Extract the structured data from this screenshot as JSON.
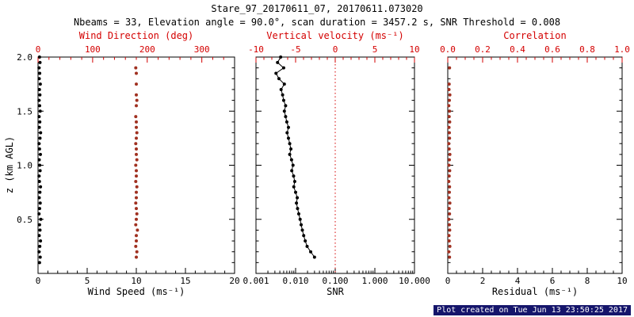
{
  "header": {
    "title": "Stare_97_20170611_07, 20170611.073020",
    "subtitle": "Nbeams = 33, Elevation angle = 90.0°, scan duration = 3457.2 s, SNR Threshold = 0.008"
  },
  "footer": {
    "created": "Plot created on Tue Jun 13 23:50:25 2017"
  },
  "colors": {
    "axis_red": "#d40000",
    "dot_dark_red": "#a03020",
    "line_black": "#000000",
    "footer_bg": "#15156b",
    "footer_fg": "#ffffff"
  },
  "chart_data": [
    {
      "type": "scatter",
      "top_title": "Wind Direction (deg)",
      "xlabel": "Wind Speed (ms⁻¹)",
      "ylabel": "z (km AGL)",
      "x_bottom": {
        "min": 0,
        "max": 20,
        "ticks": [
          0,
          5,
          10,
          15,
          20
        ],
        "labels": [
          "0",
          "5",
          "10",
          "15",
          "20"
        ],
        "minor_step": 1
      },
      "x_top": {
        "min": 0,
        "max": 360,
        "ticks": [
          0,
          100,
          200,
          300
        ],
        "labels": [
          "0",
          "100",
          "200",
          "300"
        ],
        "minor_step": 20
      },
      "y": {
        "min": 0,
        "max": 2,
        "ticks": [
          0.5,
          1,
          1.5,
          2
        ],
        "labels": [
          "0.5",
          "1.0",
          "1.5",
          "2.0"
        ],
        "minor_step": 0.1
      },
      "series": [
        {
          "name": "wind-speed",
          "axis": "bottom",
          "marker": "dot",
          "marker_color": "#000000",
          "connect": false,
          "z": [
            0.1,
            0.15,
            0.2,
            0.25,
            0.3,
            0.35,
            0.4,
            0.45,
            0.5,
            0.55,
            0.6,
            0.65,
            0.7,
            0.75,
            0.8,
            0.85,
            0.9,
            0.95,
            1.0,
            1.05,
            1.1,
            1.15,
            1.2,
            1.25,
            1.3,
            1.35,
            1.4,
            1.45,
            1.5,
            1.55,
            1.6,
            1.65,
            1.7,
            1.75,
            1.8,
            1.85,
            1.9,
            1.95,
            2.0
          ],
          "x": [
            0.15,
            0.22,
            0.1,
            0.18,
            0.25,
            0.12,
            0.2,
            0.15,
            0.28,
            0.1,
            0.16,
            0.22,
            0.12,
            0.19,
            0.25,
            0.14,
            0.1,
            0.21,
            0.17,
            0.12,
            0.24,
            0.15,
            0.1,
            0.2,
            0.26,
            0.13,
            0.18,
            0.11,
            0.22,
            0.16,
            0.1,
            0.19,
            0.14,
            0.23,
            0.12,
            0.17,
            0.1,
            0.2,
            0.15
          ]
        },
        {
          "name": "wind-direction",
          "axis": "top",
          "marker": "dot",
          "marker_color": "#a03020",
          "connect": false,
          "z": [
            0.15,
            0.2,
            0.25,
            0.3,
            0.35,
            0.4,
            0.45,
            0.5,
            0.55,
            0.6,
            0.65,
            0.7,
            0.75,
            0.8,
            0.85,
            0.9,
            0.95,
            1.0,
            1.05,
            1.1,
            1.15,
            1.2,
            1.25,
            1.3,
            1.35,
            1.4,
            1.45,
            1.55,
            1.6,
            1.65,
            1.75,
            1.85,
            1.9
          ],
          "x": [
            180,
            181,
            179,
            180,
            180,
            182,
            179,
            180,
            181,
            180,
            179,
            180,
            180,
            181,
            179,
            180,
            180,
            179,
            181,
            180,
            180,
            179,
            180,
            181,
            180,
            180,
            179,
            180,
            181,
            180,
            180,
            180,
            179
          ]
        }
      ]
    },
    {
      "type": "line",
      "top_title": "Vertical velocity (ms⁻¹)",
      "xlabel": "SNR",
      "x_bottom": {
        "scale": "log",
        "min": 0.001,
        "max": 10,
        "ticks": [
          0.001,
          0.01,
          0.1,
          1,
          10
        ],
        "labels": [
          "0.001",
          "0.010",
          "0.100",
          "1.000",
          "10.000"
        ]
      },
      "x_top": {
        "min": -10,
        "max": 10,
        "ticks": [
          -10,
          -5,
          0,
          5,
          10
        ],
        "labels": [
          "-10",
          "-5",
          "0",
          "5",
          "10"
        ],
        "minor_step": 1
      },
      "y": {
        "min": 0,
        "max": 2,
        "ticks": [
          0.5,
          1,
          1.5,
          2
        ],
        "labels": [],
        "minor_step": 0.1
      },
      "refline": {
        "axis": "top",
        "x": 0,
        "style": "dotted",
        "color": "#d40000"
      },
      "series": [
        {
          "name": "snr-profile",
          "axis": "bottom",
          "marker": "dot",
          "marker_color": "#000000",
          "line_color": "#000000",
          "connect": true,
          "z": [
            2.0,
            1.95,
            1.9,
            1.85,
            1.8,
            1.75,
            1.7,
            1.65,
            1.6,
            1.55,
            1.5,
            1.45,
            1.4,
            1.35,
            1.3,
            1.25,
            1.2,
            1.15,
            1.1,
            1.05,
            1.0,
            0.95,
            0.9,
            0.85,
            0.8,
            0.75,
            0.7,
            0.65,
            0.6,
            0.55,
            0.5,
            0.45,
            0.4,
            0.35,
            0.3,
            0.25,
            0.2,
            0.15
          ],
          "x": [
            0.0042,
            0.0035,
            0.005,
            0.0032,
            0.0038,
            0.0052,
            0.0043,
            0.0047,
            0.005,
            0.0056,
            0.0052,
            0.0056,
            0.006,
            0.0066,
            0.0061,
            0.0066,
            0.0071,
            0.0076,
            0.0071,
            0.0079,
            0.0086,
            0.008,
            0.0089,
            0.0095,
            0.009,
            0.01,
            0.011,
            0.0105,
            0.0112,
            0.012,
            0.013,
            0.0138,
            0.0148,
            0.016,
            0.0175,
            0.0195,
            0.024,
            0.03
          ]
        }
      ]
    },
    {
      "type": "scatter",
      "top_title": "Correlation",
      "xlabel": "Residual (ms⁻¹)",
      "x_bottom": {
        "min": 0,
        "max": 10,
        "ticks": [
          0,
          2,
          4,
          6,
          8,
          10
        ],
        "labels": [
          "0",
          "2",
          "4",
          "6",
          "8",
          "10"
        ],
        "minor_step": 0.5
      },
      "x_top": {
        "min": 0,
        "max": 1,
        "ticks": [
          0,
          0.2,
          0.4,
          0.6,
          0.8,
          1
        ],
        "labels": [
          "0.0",
          "0.2",
          "0.4",
          "0.6",
          "0.8",
          "1.0"
        ],
        "minor_step": 0.05
      },
      "y": {
        "min": 0,
        "max": 2,
        "ticks": [
          0.5,
          1,
          1.5,
          2
        ],
        "labels": [],
        "minor_step": 0.1
      },
      "series": [
        {
          "name": "residual",
          "axis": "bottom",
          "marker": "dot",
          "marker_color": "#a03020",
          "connect": false,
          "z": [
            0.15,
            0.2,
            0.25,
            0.3,
            0.35,
            0.4,
            0.45,
            0.5,
            0.55,
            0.6,
            0.65,
            0.7,
            0.75,
            0.8,
            0.85,
            0.9,
            0.95,
            1.0,
            1.05,
            1.1,
            1.15,
            1.2,
            1.25,
            1.3,
            1.35,
            1.4,
            1.45,
            1.5,
            1.55,
            1.6,
            1.65,
            1.7,
            1.75,
            1.9
          ],
          "x": [
            0.1,
            0.06,
            0.12,
            0.08,
            0.07,
            0.11,
            0.09,
            0.06,
            0.1,
            0.08,
            0.12,
            0.07,
            0.09,
            0.1,
            0.06,
            0.08,
            0.11,
            0.07,
            0.09,
            0.12,
            0.08,
            0.06,
            0.1,
            0.09,
            0.07,
            0.11,
            0.08,
            0.1,
            0.06,
            0.09,
            0.12,
            0.07,
            0.08,
            0.1
          ]
        }
      ]
    }
  ]
}
